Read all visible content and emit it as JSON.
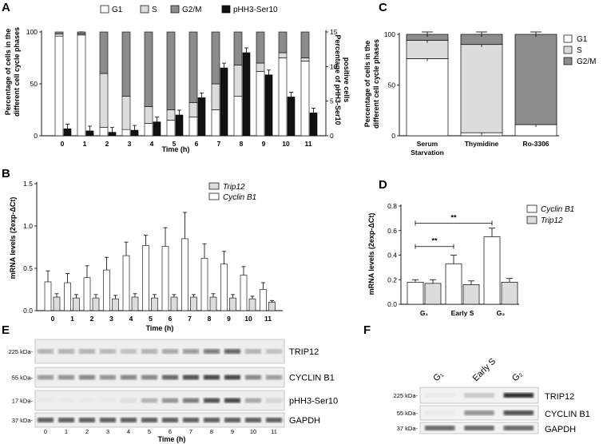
{
  "panels": {
    "A": {
      "label": "A",
      "ylabel_left": [
        "Percentage of cells in the",
        "different cell cycle phases"
      ],
      "ylabel_right": [
        "Percentage of pHH3-Ser10",
        "positive cells"
      ],
      "xlabel": "Time (h)",
      "legend": [
        "G1",
        "S",
        "G2/M",
        "pHH3-Ser10"
      ]
    },
    "B": {
      "label": "B",
      "ylabel": "mRNA levels (2exp-ΔCt)",
      "xlabel": "Time (h)",
      "legend": [
        "Trip12",
        "Cyclin B1"
      ]
    },
    "C": {
      "label": "C",
      "ylabel": [
        "Percentage of cells in the",
        "different cell cycle phases"
      ],
      "legend": [
        "G1",
        "S",
        "G2/M"
      ]
    },
    "D": {
      "label": "D",
      "ylabel": "mRNA levels (2exp-ΔCt)",
      "legend": [
        "Cyclin B1",
        "Trip12"
      ],
      "sig": [
        "**",
        "**"
      ]
    },
    "E": {
      "label": "E",
      "kda": [
        "225 kDa-",
        "55 kDa-",
        "17 kDa-",
        "37 kDa-"
      ],
      "bands": [
        "TRIP12",
        "CYCLIN B1",
        "pHH3-Ser10",
        "GAPDH"
      ],
      "lanes": [
        "0",
        "1",
        "2",
        "3",
        "4",
        "5",
        "6",
        "7",
        "8",
        "9",
        "10",
        "11"
      ],
      "xlabel": "Time (h)"
    },
    "F": {
      "label": "F",
      "kda": [
        "225 kDa-",
        "55 kDa-",
        "37 kDa-"
      ],
      "bands": [
        "TRIP12",
        "CYCLIN B1",
        "GAPDH"
      ],
      "lanes": [
        "G1",
        "Early S",
        "G2"
      ]
    }
  },
  "colors": {
    "g1": "#ffffff",
    "s": "#dcdcdc",
    "g2m": "#8c8c8c",
    "phh3": "#111111"
  },
  "chart_data": [
    {
      "id": "A",
      "type": "bar",
      "categories": [
        "0",
        "1",
        "2",
        "3",
        "4",
        "5",
        "6",
        "7",
        "8",
        "9",
        "10",
        "11"
      ],
      "ylim": [
        0,
        100
      ],
      "yticks": [
        0,
        50,
        100
      ],
      "y2lim": [
        0,
        15
      ],
      "y2ticks": [
        0,
        5,
        10,
        15
      ],
      "series": [
        {
          "name": "G1",
          "values": [
            96,
            97,
            8,
            6,
            12,
            15,
            18,
            25,
            38,
            62,
            75,
            72
          ]
        },
        {
          "name": "S",
          "values": [
            2,
            1,
            52,
            32,
            16,
            10,
            14,
            25,
            30,
            8,
            5,
            3
          ]
        },
        {
          "name": "G2/M",
          "values": [
            2,
            2,
            40,
            62,
            72,
            75,
            68,
            50,
            32,
            30,
            20,
            25
          ]
        },
        {
          "name": "pHH3-Ser10",
          "axis": "right",
          "values": [
            1,
            0.7,
            0.5,
            0.8,
            2,
            3,
            5.5,
            9.8,
            12,
            8.8,
            5.6,
            3.3
          ]
        }
      ]
    },
    {
      "id": "B",
      "type": "bar",
      "categories": [
        "0",
        "1",
        "2",
        "3",
        "4",
        "5",
        "6",
        "7",
        "8",
        "9",
        "10",
        "11"
      ],
      "ylim": [
        0,
        1.5
      ],
      "yticks": [
        0.0,
        0.5,
        1.0,
        1.5
      ],
      "series": [
        {
          "name": "Cyclin B1",
          "values": [
            0.34,
            0.33,
            0.39,
            0.48,
            0.65,
            0.77,
            0.76,
            0.85,
            0.62,
            0.55,
            0.42,
            0.25
          ],
          "errors": [
            0.13,
            0.11,
            0.14,
            0.15,
            0.16,
            0.12,
            0.22,
            0.31,
            0.17,
            0.15,
            0.1,
            0.08
          ]
        },
        {
          "name": "Trip12",
          "values": [
            0.16,
            0.15,
            0.15,
            0.14,
            0.16,
            0.15,
            0.16,
            0.16,
            0.16,
            0.15,
            0.14,
            0.1
          ],
          "errors": [
            0.04,
            0.04,
            0.04,
            0.04,
            0.04,
            0.04,
            0.03,
            0.03,
            0.04,
            0.04,
            0.03,
            0.02
          ]
        }
      ]
    },
    {
      "id": "C",
      "type": "bar",
      "categories": [
        "Serum Starvation",
        "Thymidine",
        "Ro-3306"
      ],
      "ylim": [
        0,
        100
      ],
      "yticks": [
        0,
        50,
        100
      ],
      "series": [
        {
          "name": "G1",
          "values": [
            76,
            3,
            11
          ]
        },
        {
          "name": "S",
          "values": [
            18,
            87,
            0
          ]
        },
        {
          "name": "G2/M",
          "values": [
            6,
            10,
            89
          ]
        }
      ]
    },
    {
      "id": "D",
      "type": "bar",
      "categories": [
        "G1",
        "Early S",
        "G2"
      ],
      "ylim": [
        0,
        0.8
      ],
      "yticks": [
        0.0,
        0.2,
        0.4,
        0.6,
        0.8
      ],
      "series": [
        {
          "name": "Cyclin B1",
          "values": [
            0.18,
            0.33,
            0.55
          ],
          "errors": [
            0.02,
            0.07,
            0.07
          ]
        },
        {
          "name": "Trip12",
          "values": [
            0.17,
            0.16,
            0.18
          ],
          "errors": [
            0.03,
            0.03,
            0.03
          ]
        }
      ]
    }
  ]
}
